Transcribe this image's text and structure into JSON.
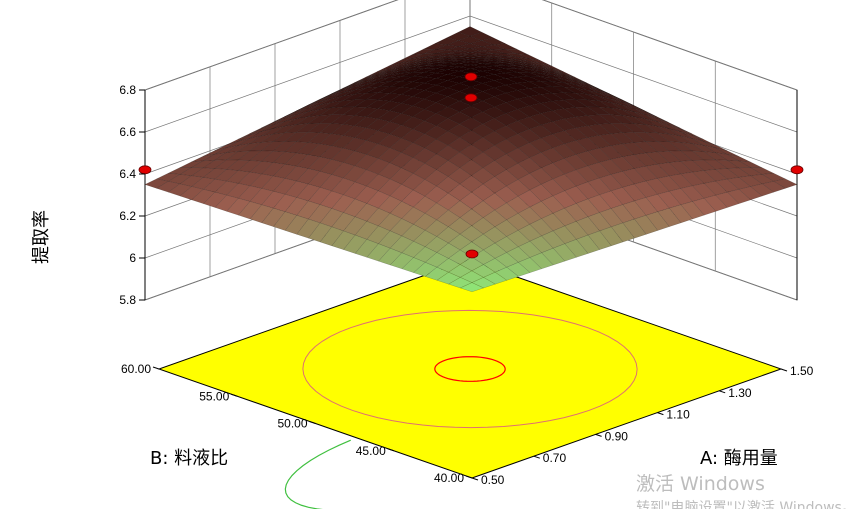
{
  "chart_data": {
    "type": "surface3d",
    "title": "",
    "zlabel": "提取率",
    "xlabel": "A: 酶用量",
    "ylabel": "B: 料液比",
    "x_range": [
      0.5,
      1.5
    ],
    "y_range": [
      40,
      60
    ],
    "z_range": [
      5.8,
      6.8
    ],
    "x_ticks": [
      "0.50",
      "0.70",
      "0.90",
      "1.10",
      "1.30",
      "1.50"
    ],
    "y_ticks": [
      "40.00",
      "45.00",
      "50.00",
      "55.00",
      "60.00"
    ],
    "z_ticks": [
      "5.8",
      "6",
      "6.2",
      "6.4",
      "6.6",
      "6.8"
    ],
    "surface_points": [
      {
        "x": 0.5,
        "y": 60,
        "z": 6.35
      },
      {
        "x": 1.5,
        "y": 60,
        "z": 6.55
      },
      {
        "x": 0.5,
        "y": 40,
        "z": 5.82
      },
      {
        "x": 1.5,
        "y": 40,
        "z": 6.35
      },
      {
        "x": 1.0,
        "y": 50,
        "z": 6.63
      }
    ],
    "design_points": [
      {
        "x": 0.5,
        "y": 60,
        "z": 6.42
      },
      {
        "x": 1.0,
        "y": 50,
        "z": 6.62
      },
      {
        "x": 1.0,
        "y": 50,
        "z": 6.72
      },
      {
        "x": 0.5,
        "y": 40,
        "z": 6.0
      },
      {
        "x": 1.5,
        "y": 40,
        "z": 6.42
      }
    ],
    "colors": {
      "floor": "#ffff00",
      "contour": "#e07070",
      "contour_center": "#ff0000",
      "contour_corner": "#40c040",
      "surface_low": "#8ef07a",
      "surface_mid": "#9c5f50",
      "surface_high": "#1a0000",
      "design_point": "#e00000",
      "grid": "#777777"
    },
    "grid": true
  },
  "watermark": {
    "line1": "激活 Windows",
    "line2": "转到\"电脑设置\"以激活 Windows。"
  }
}
